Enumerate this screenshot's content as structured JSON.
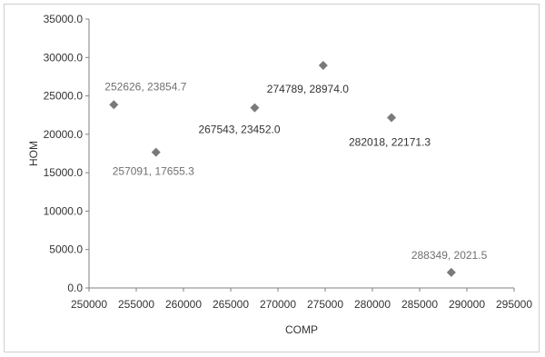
{
  "chart_data": {
    "type": "scatter",
    "title": "",
    "xlabel": "COMP",
    "ylabel": "HOM",
    "xlim": [
      250000,
      295000
    ],
    "ylim": [
      0,
      35000
    ],
    "x_ticks": [
      "250000",
      "255000",
      "260000",
      "265000",
      "270000",
      "275000",
      "280000",
      "285000",
      "290000",
      "295000"
    ],
    "y_ticks": [
      "0.0",
      "5000.0",
      "10000.0",
      "15000.0",
      "20000.0",
      "25000.0",
      "30000.0",
      "35000.0"
    ],
    "grid": false,
    "marker": "diamond",
    "marker_color": "#7a7a7a",
    "series": [
      {
        "points": [
          {
            "x": 252626,
            "y": 23854.7,
            "label": "252626, 23854.7"
          },
          {
            "x": 257091,
            "y": 17655.3,
            "label": "257091, 17655.3"
          },
          {
            "x": 267543,
            "y": 23452.0,
            "label": "267543, 23452.0"
          },
          {
            "x": 274789,
            "y": 28974.0,
            "label": "274789, 28974.0"
          },
          {
            "x": 282018,
            "y": 22171.3,
            "label": "282018, 22171.3"
          },
          {
            "x": 288349,
            "y": 2021.5,
            "label": "288349, 2021.5"
          }
        ]
      }
    ]
  }
}
